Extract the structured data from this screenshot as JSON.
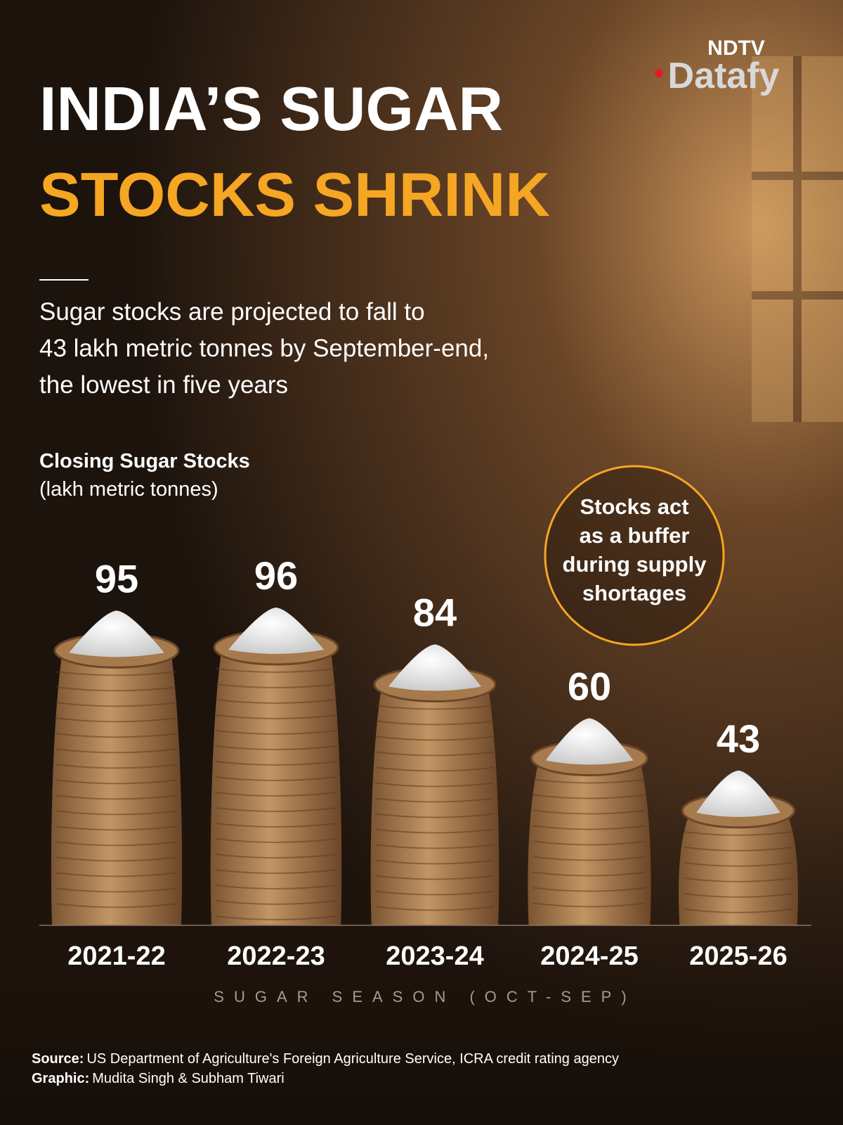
{
  "logo": {
    "top": "NDTV",
    "bottom": "Datafy"
  },
  "chart_data": {
    "type": "bar",
    "title_lines": [
      "INDIA’S SUGAR",
      "STOCKS SHRINK"
    ],
    "subtitle_lines": [
      "Sugar stocks are projected to fall to",
      "43 lakh metric tonnes by September-end,",
      "the lowest in five years"
    ],
    "y_label": "Closing Sugar Stocks",
    "y_unit": "(lakh metric tonnes)",
    "categories": [
      "2021-22",
      "2022-23",
      "2023-24",
      "2024-25",
      "2025-26"
    ],
    "values": [
      95,
      96,
      84,
      60,
      43
    ],
    "color": "#b98b5a",
    "annotation_lines": [
      "Stocks act",
      "as a buffer",
      "during supply",
      "shortages"
    ],
    "x_label": "SUGAR SEASON (OCT-SEP)"
  },
  "footer": {
    "source_label": "Source:",
    "source": "US Department of Agriculture's Foreign Agriculture Service, ICRA credit rating agency",
    "graphic_label": "Graphic:",
    "graphic": "Mudita Singh & Subham Tiwari"
  }
}
